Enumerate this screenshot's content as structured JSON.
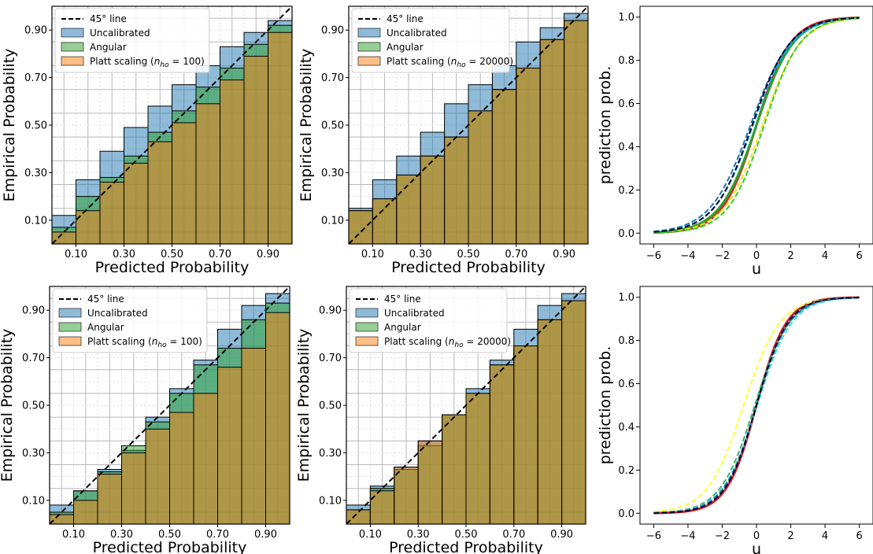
{
  "chart_data": [
    {
      "type": "bar",
      "xlabel": "Predicted Probability",
      "ylabel": "Empirical Probability",
      "xlim": [
        0,
        1
      ],
      "ylim": [
        0,
        1
      ],
      "xticks": [
        "0.10",
        "0.30",
        "0.50",
        "0.70",
        "0.90"
      ],
      "yticks": [
        "0.10",
        "0.30",
        "0.50",
        "0.70",
        "0.90"
      ],
      "grid": true,
      "legend_position": "upper-left",
      "legend": [
        "45° line",
        "Uncalibrated",
        "Angular",
        "Platt scaling ($n_{ho} = 100$)"
      ],
      "bins": [
        0.05,
        0.15,
        0.25,
        0.35,
        0.45,
        0.55,
        0.65,
        0.75,
        0.85,
        0.95
      ],
      "series": [
        {
          "name": "Uncalibrated",
          "color": "#1f77b4",
          "values": [
            0.12,
            0.27,
            0.39,
            0.49,
            0.58,
            0.67,
            0.75,
            0.83,
            0.89,
            0.94
          ]
        },
        {
          "name": "Angular",
          "color": "#2ca02c",
          "values": [
            0.07,
            0.2,
            0.28,
            0.37,
            0.47,
            0.56,
            0.66,
            0.74,
            0.84,
            0.92
          ]
        },
        {
          "name": "Platt scaling",
          "color": "#ff7f0e",
          "values": [
            0.05,
            0.14,
            0.26,
            0.34,
            0.43,
            0.51,
            0.59,
            0.69,
            0.79,
            0.89
          ]
        }
      ]
    },
    {
      "type": "bar",
      "xlabel": "Predicted Probability",
      "ylabel": "Empirical Probability",
      "xlim": [
        0,
        1
      ],
      "ylim": [
        0,
        1
      ],
      "xticks": [
        "0.10",
        "0.30",
        "0.50",
        "0.70",
        "0.90"
      ],
      "yticks": [
        "0.10",
        "0.30",
        "0.50",
        "0.70",
        "0.90"
      ],
      "grid": true,
      "legend_position": "upper-left",
      "legend": [
        "45° line",
        "Uncalibrated",
        "Angular",
        "Platt scaling ($n_{ho} = 20000$)"
      ],
      "bins": [
        0.05,
        0.15,
        0.25,
        0.35,
        0.45,
        0.55,
        0.65,
        0.75,
        0.85,
        0.95
      ],
      "series": [
        {
          "name": "Uncalibrated",
          "color": "#1f77b4",
          "values": [
            0.15,
            0.27,
            0.37,
            0.47,
            0.59,
            0.67,
            0.75,
            0.85,
            0.91,
            0.97
          ]
        },
        {
          "name": "Angular",
          "color": "#2ca02c",
          "values": [
            0.14,
            0.19,
            0.29,
            0.37,
            0.45,
            0.56,
            0.65,
            0.74,
            0.86,
            0.94
          ]
        },
        {
          "name": "Platt scaling",
          "color": "#ff7f0e",
          "values": [
            0.14,
            0.19,
            0.29,
            0.37,
            0.45,
            0.56,
            0.65,
            0.74,
            0.86,
            0.94
          ]
        }
      ]
    },
    {
      "type": "line",
      "xlabel": "u",
      "ylabel": "prediction prob.",
      "xlim": [
        -6.8,
        6.8
      ],
      "ylim": [
        -0.05,
        1.05
      ],
      "xticks": [
        "−6",
        "−4",
        "−2",
        "0",
        "2",
        "4",
        "6"
      ],
      "yticks": [
        "0.0",
        "0.2",
        "0.4",
        "0.6",
        "0.8",
        "1.0"
      ],
      "grid": false,
      "series": [
        {
          "kind": "logistic",
          "scale": 1.0,
          "shift": 0.0,
          "color": "#d62728",
          "style": "solid"
        },
        {
          "kind": "logistic",
          "scale": 0.93,
          "shift": 0.0,
          "color": "#2ca02c",
          "style": "solid"
        },
        {
          "kind": "logistic",
          "scale": 0.85,
          "shift": -0.35,
          "color": "#1f77b4",
          "style": "dashed"
        },
        {
          "kind": "logistic",
          "scale": 0.88,
          "shift": -0.2,
          "color": "#00bfff",
          "style": "dashed"
        },
        {
          "kind": "logistic",
          "scale": 0.9,
          "shift": 0.35,
          "color": "#ffe000",
          "style": "dashed"
        },
        {
          "kind": "logistic",
          "scale": 0.95,
          "shift": 0.45,
          "color": "#32cd32",
          "style": "dashed"
        },
        {
          "kind": "logistic",
          "scale": 0.9,
          "shift": -0.25,
          "color": "#000033",
          "style": "dashed"
        }
      ]
    },
    {
      "type": "bar",
      "xlabel": "Predicted Probability",
      "ylabel": "Empirical Probability",
      "xlim": [
        0,
        1
      ],
      "ylim": [
        0,
        1
      ],
      "xticks": [
        "0.10",
        "0.30",
        "0.50",
        "0.70",
        "0.90"
      ],
      "yticks": [
        "0.10",
        "0.30",
        "0.50",
        "0.70",
        "0.90"
      ],
      "grid": true,
      "legend_position": "upper-left",
      "legend": [
        "45° line",
        "Uncalibrated",
        "Angular",
        "Platt scaling ($n_{ho} = 100$)"
      ],
      "bins": [
        0.05,
        0.15,
        0.25,
        0.35,
        0.45,
        0.55,
        0.65,
        0.75,
        0.85,
        0.95
      ],
      "series": [
        {
          "name": "Uncalibrated",
          "color": "#1f77b4",
          "values": [
            0.08,
            0.14,
            0.23,
            0.31,
            0.45,
            0.57,
            0.69,
            0.82,
            0.92,
            0.97
          ]
        },
        {
          "name": "Angular",
          "color": "#2ca02c",
          "values": [
            0.05,
            0.14,
            0.22,
            0.33,
            0.43,
            0.55,
            0.67,
            0.74,
            0.86,
            0.93
          ]
        },
        {
          "name": "Platt scaling",
          "color": "#ff7f0e",
          "values": [
            0.04,
            0.1,
            0.21,
            0.3,
            0.4,
            0.47,
            0.55,
            0.66,
            0.74,
            0.89
          ]
        }
      ]
    },
    {
      "type": "bar",
      "xlabel": "Predicted Probability",
      "ylabel": "Empirical Probability",
      "xlim": [
        0,
        1
      ],
      "ylim": [
        0,
        1
      ],
      "xticks": [
        "0.10",
        "0.30",
        "0.50",
        "0.70",
        "0.90"
      ],
      "yticks": [
        "0.10",
        "0.30",
        "0.50",
        "0.70",
        "0.90"
      ],
      "grid": true,
      "legend_position": "upper-left",
      "legend": [
        "45° line",
        "Uncalibrated",
        "Angular",
        "Platt scaling ($n_{ho} = 20000$)"
      ],
      "bins": [
        0.05,
        0.15,
        0.25,
        0.35,
        0.45,
        0.55,
        0.65,
        0.75,
        0.85,
        0.95
      ],
      "series": [
        {
          "name": "Uncalibrated",
          "color": "#1f77b4",
          "values": [
            0.08,
            0.16,
            0.24,
            0.35,
            0.46,
            0.57,
            0.69,
            0.82,
            0.92,
            0.97
          ]
        },
        {
          "name": "Angular",
          "color": "#2ca02c",
          "values": [
            0.06,
            0.15,
            0.23,
            0.33,
            0.46,
            0.55,
            0.67,
            0.75,
            0.86,
            0.94
          ]
        },
        {
          "name": "Platt scaling",
          "color": "#ff7f0e",
          "values": [
            0.06,
            0.14,
            0.24,
            0.35,
            0.46,
            0.55,
            0.67,
            0.75,
            0.86,
            0.94
          ]
        }
      ]
    },
    {
      "type": "line",
      "xlabel": "u",
      "ylabel": "prediction prob.",
      "xlim": [
        -6.8,
        6.8
      ],
      "ylim": [
        -0.05,
        1.05
      ],
      "xticks": [
        "−6",
        "−4",
        "−2",
        "0",
        "2",
        "4",
        "6"
      ],
      "yticks": [
        "0.0",
        "0.2",
        "0.4",
        "0.6",
        "0.8",
        "1.0"
      ],
      "grid": false,
      "series": [
        {
          "kind": "logistic",
          "scale": 1.15,
          "shift": 0.0,
          "color": "#d62728",
          "style": "solid"
        },
        {
          "kind": "logistic",
          "scale": 0.95,
          "shift": -0.75,
          "color": "#ffff33",
          "style": "dashed"
        },
        {
          "kind": "logistic",
          "scale": 1.0,
          "shift": -0.1,
          "color": "#3cb371",
          "style": "dashed"
        },
        {
          "kind": "logistic",
          "scale": 1.0,
          "shift": 0.05,
          "color": "#40e0d0",
          "style": "dashed"
        },
        {
          "kind": "logistic",
          "scale": 1.05,
          "shift": 0.0,
          "color": "#1f77b4",
          "style": "dashed"
        },
        {
          "kind": "logistic",
          "scale": 1.1,
          "shift": 0.0,
          "color": "#000033",
          "style": "dashed"
        }
      ]
    }
  ]
}
